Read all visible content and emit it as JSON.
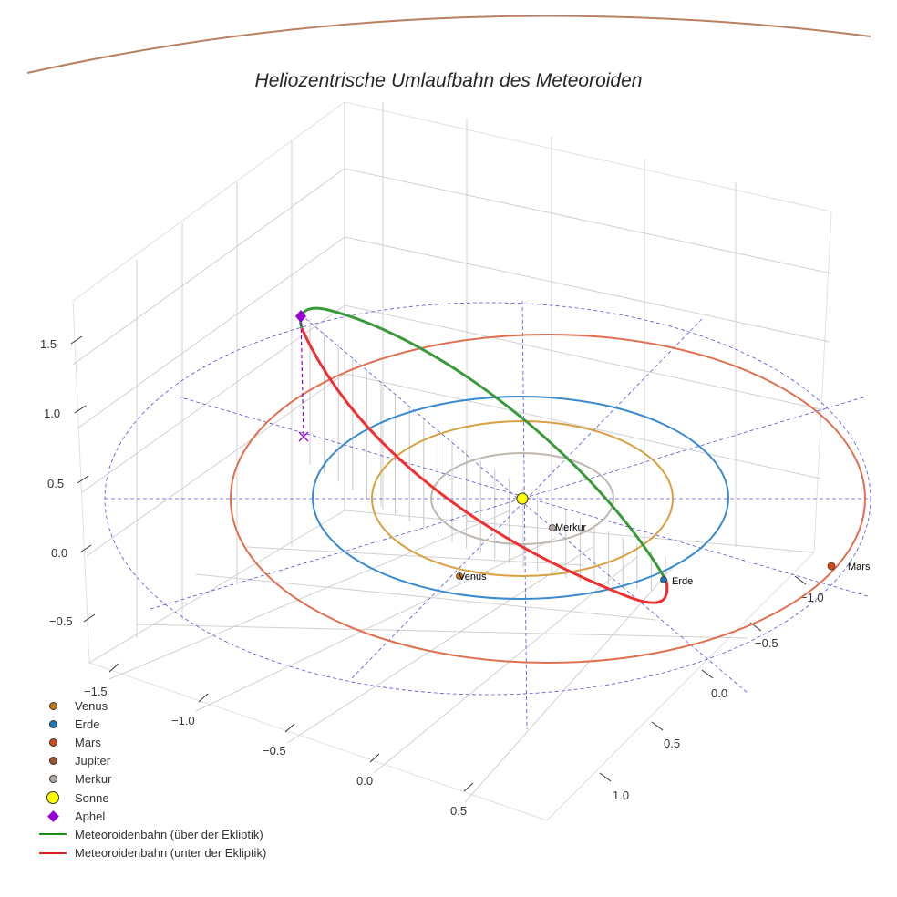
{
  "chart_data": {
    "type": "3d-line",
    "title": "Heliozentrische Umlaufbahn des Meteoroiden",
    "x_ticks": [
      "−1.5",
      "−1.0",
      "−0.5",
      "0.0",
      "0.5"
    ],
    "y_ticks": [
      "−1.0",
      "−0.5",
      "0.0",
      "0.5",
      "1.0"
    ],
    "z_ticks": [
      "1.5",
      "1.0",
      "0.5",
      "0.0",
      "−0.5"
    ],
    "orbits": [
      {
        "name": "Merkur",
        "radius_au": 0.39,
        "color": "#c0b8b0"
      },
      {
        "name": "Venus",
        "radius_au": 0.72,
        "color": "#d9a040"
      },
      {
        "name": "Erde",
        "radius_au": 1.0,
        "color": "#3a8ad0"
      },
      {
        "name": "Mars",
        "radius_au": 1.52,
        "color": "#e07050"
      },
      {
        "name": "Jupiter",
        "radius_au": 5.2,
        "color": "#b98060"
      }
    ],
    "planet_labels": {
      "merkur": "Merkur",
      "venus": "Venus",
      "erde": "Erde",
      "mars": "Mars"
    },
    "legend": [
      {
        "label": "Venus",
        "color": "#c87a10",
        "kind": "dot"
      },
      {
        "label": "Erde",
        "color": "#1f77b4",
        "kind": "dot"
      },
      {
        "label": "Mars",
        "color": "#d04a18",
        "kind": "dot"
      },
      {
        "label": "Jupiter",
        "color": "#a0522d",
        "kind": "dot"
      },
      {
        "label": "Merkur",
        "color": "#b0a8a0",
        "kind": "dot"
      },
      {
        "label": "Sonne",
        "color": "#ffff00",
        "kind": "sun"
      },
      {
        "label": "Aphel",
        "color": "#9400d3",
        "kind": "diamond"
      },
      {
        "label": "Meteoroidenbahn (über der Ekliptik)",
        "color": "#1a8a1a",
        "kind": "line"
      },
      {
        "label": "Meteoroidenbahn (unter der Ekliptik)",
        "color": "#e02020",
        "kind": "line"
      }
    ]
  }
}
